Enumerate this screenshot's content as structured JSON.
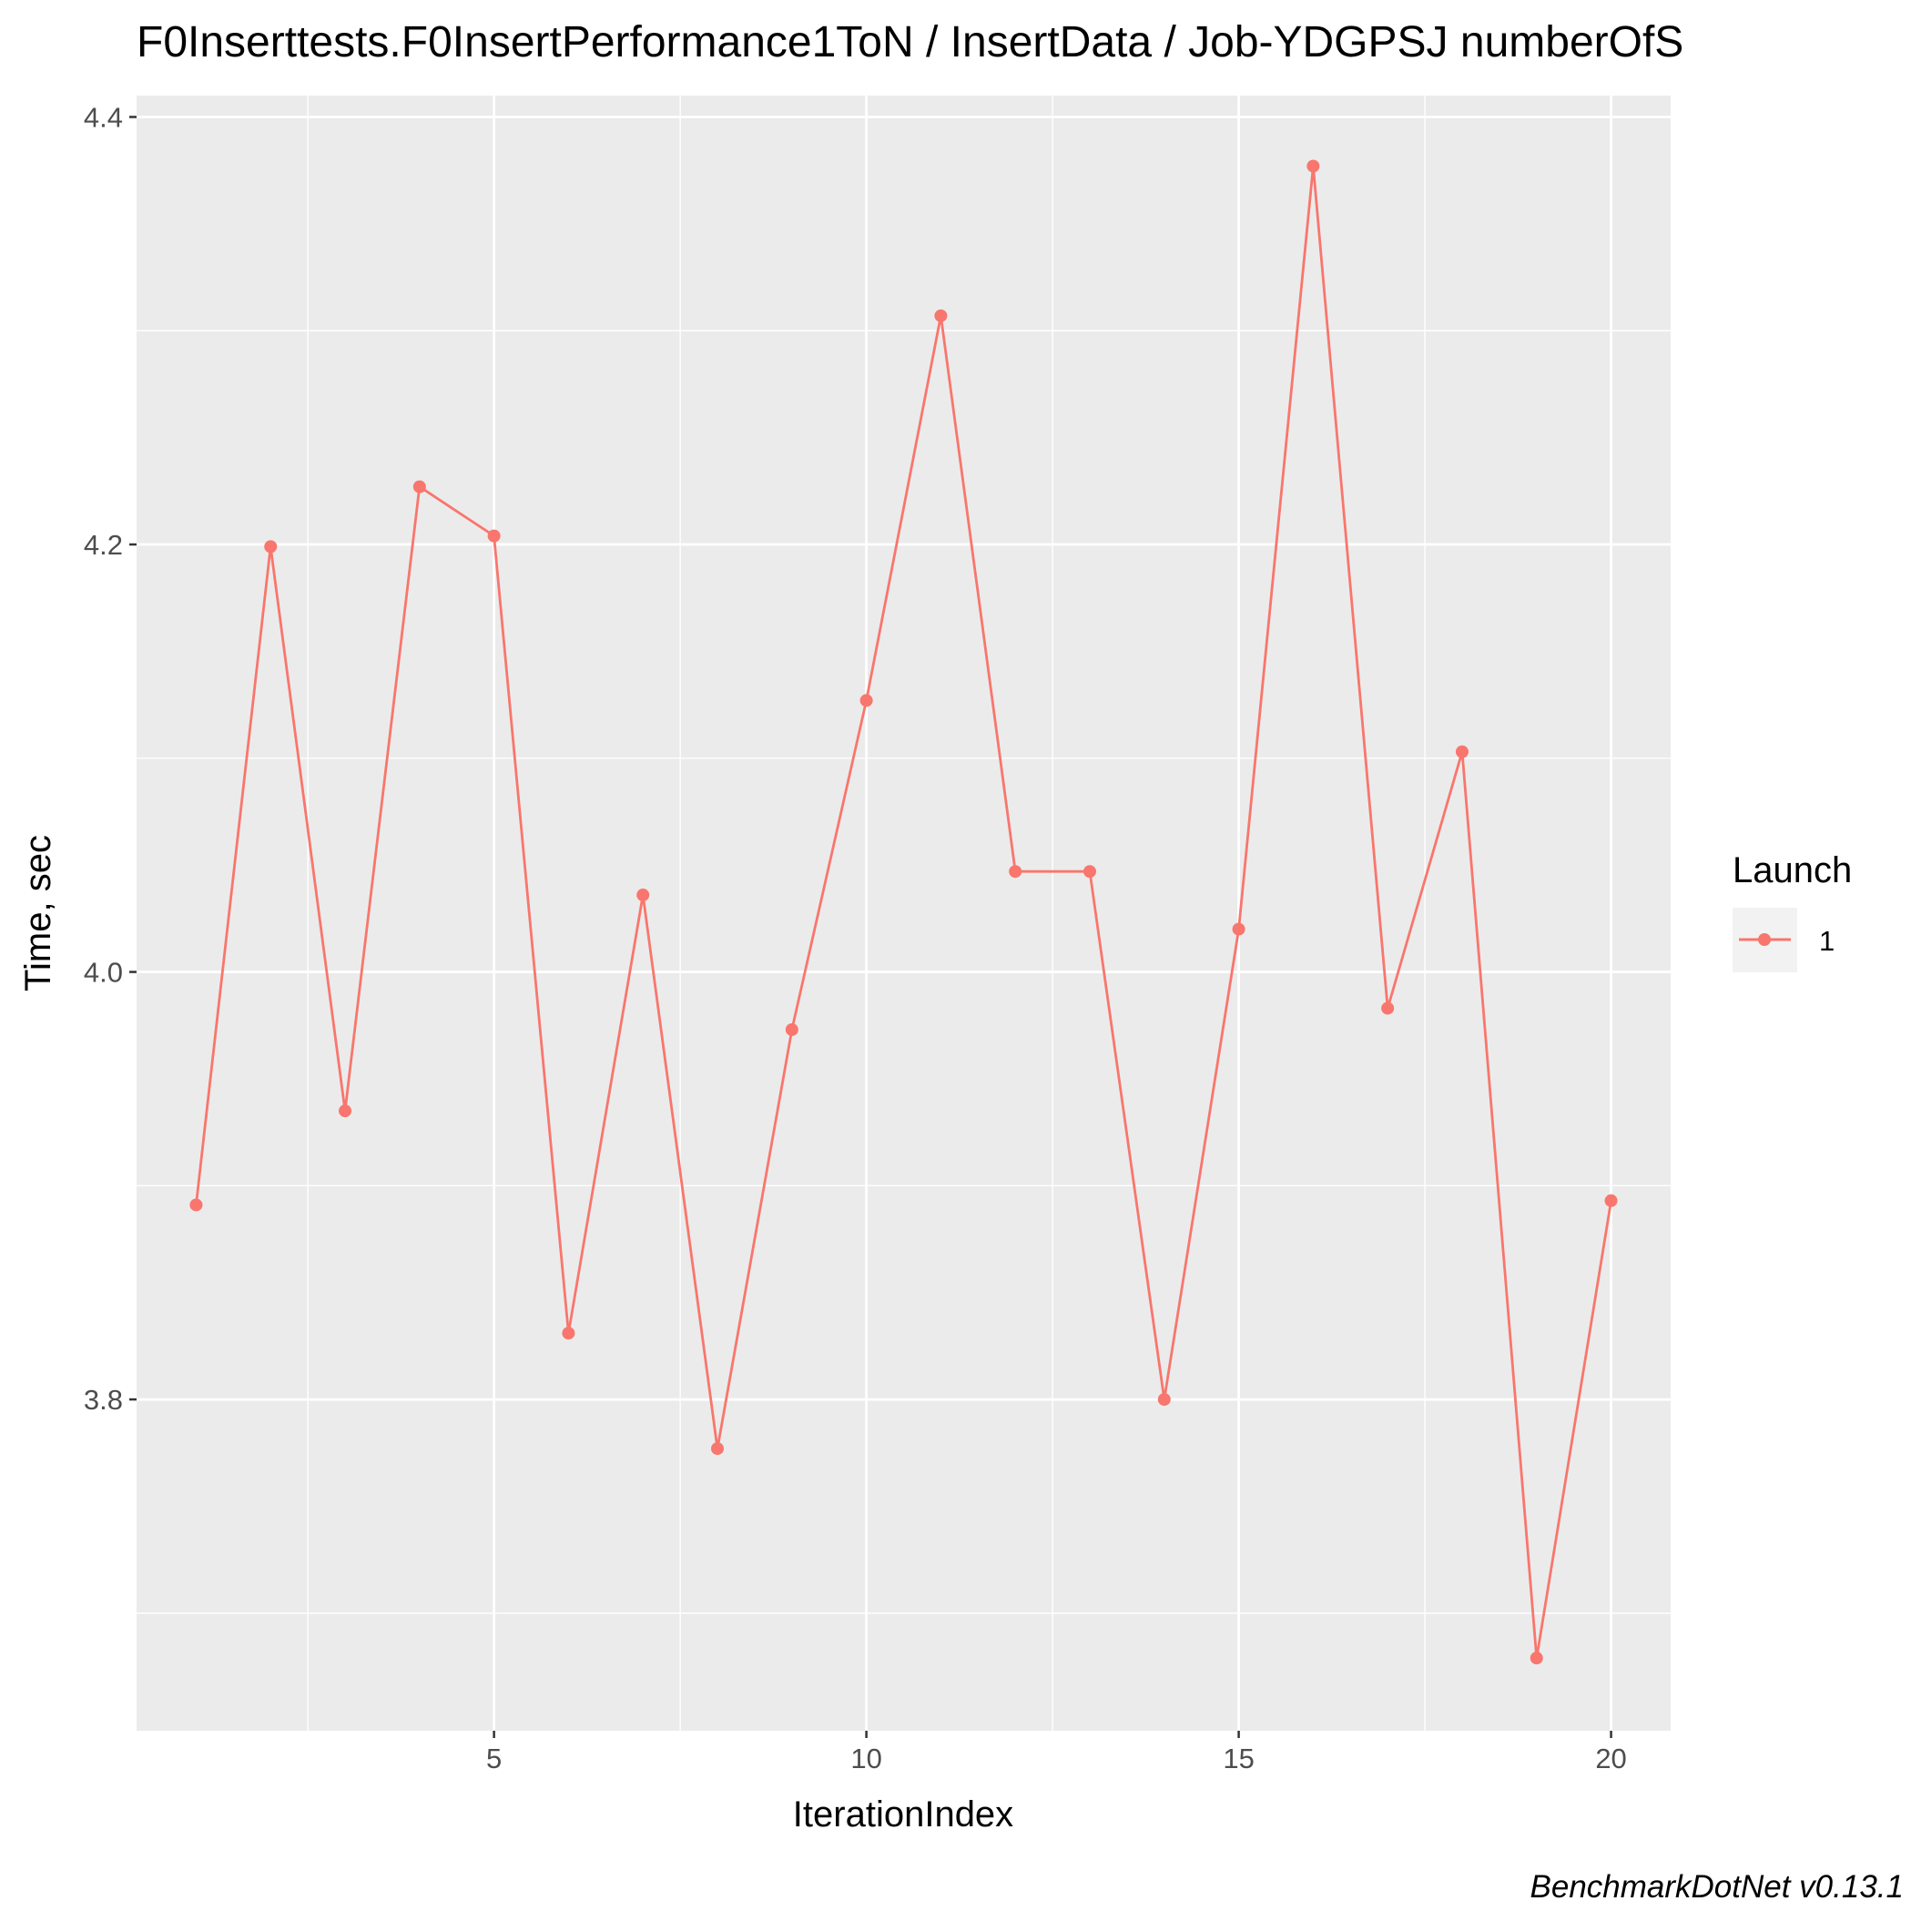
{
  "chart_data": {
    "type": "line",
    "title": "F0Inserttests.F0InsertPerformance1ToN / InsertData / Job-YDGPSJ numberOfS",
    "xlabel": "IterationIndex",
    "ylabel": "Time, sec",
    "caption": "BenchmarkDotNet v0.13.1",
    "xlim": [
      0.2,
      20.8
    ],
    "ylim": [
      3.645,
      4.41
    ],
    "x_ticks": [
      {
        "value": 5,
        "label": "5"
      },
      {
        "value": 10,
        "label": "10"
      },
      {
        "value": 15,
        "label": "15"
      },
      {
        "value": 20,
        "label": "20"
      }
    ],
    "x_minor_ticks": [
      2.5,
      7.5,
      12.5,
      17.5
    ],
    "y_ticks": [
      {
        "value": 3.8,
        "label": "3.8"
      },
      {
        "value": 4.0,
        "label": "4.0"
      },
      {
        "value": 4.2,
        "label": "4.2"
      },
      {
        "value": 4.4,
        "label": "4.4"
      }
    ],
    "y_minor_ticks": [
      3.7,
      3.9,
      4.1,
      4.3
    ],
    "grid": true,
    "legend": {
      "title": "Launch",
      "position": "right"
    },
    "series": [
      {
        "name": "1",
        "color": "#F8766D",
        "x": [
          1,
          2,
          3,
          4,
          5,
          6,
          7,
          8,
          9,
          10,
          11,
          12,
          13,
          14,
          15,
          16,
          17,
          18,
          19,
          20
        ],
        "y": [
          3.891,
          4.199,
          3.935,
          4.227,
          4.204,
          3.831,
          4.036,
          3.777,
          3.973,
          4.127,
          4.307,
          4.047,
          4.047,
          3.8,
          4.02,
          4.377,
          3.983,
          4.103,
          3.679,
          3.893
        ]
      }
    ]
  }
}
